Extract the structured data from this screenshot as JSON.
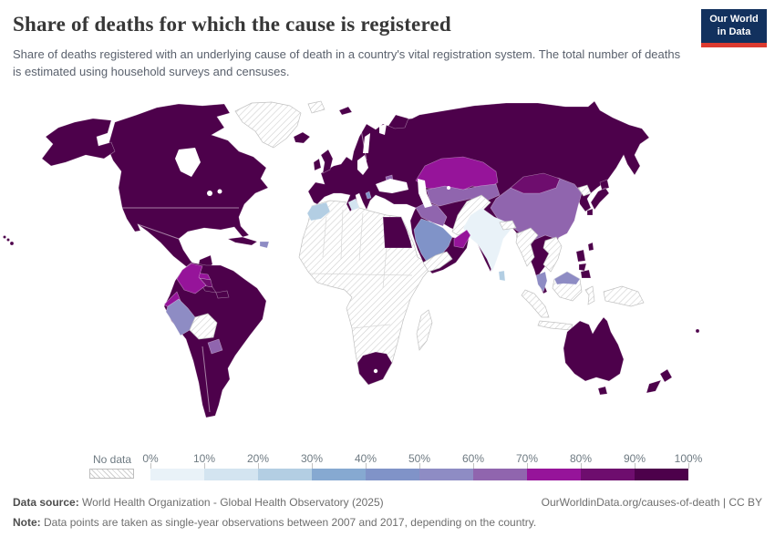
{
  "header": {
    "title": "Share of deaths for which the cause is registered",
    "subtitle": "Share of deaths registered with an underlying cause of death in a country's vital registration system. The total number of deaths is estimated using household surveys and censuses.",
    "logo_line1": "Our World",
    "logo_line2": "in Data",
    "logo_bg": "#12315e",
    "logo_accent": "#dc3a2f"
  },
  "footer": {
    "source_label": "Data source:",
    "source_text": " World Health Organization - Global Health Observatory (2025)",
    "link_text": "OurWorldinData.org/causes-of-death | CC BY",
    "note_label": "Note:",
    "note_text": " Data points are taken as single-year observations between 2007 and 2017, depending on the country."
  },
  "chart_data": {
    "type": "choropleth",
    "title": "Share of deaths for which the cause is registered",
    "unit": "%",
    "legend": {
      "no_data_label": "No data",
      "tick_labels": [
        "0%",
        "10%",
        "20%",
        "30%",
        "40%",
        "50%",
        "60%",
        "70%",
        "80%",
        "90%",
        "100%"
      ],
      "bins": [
        {
          "range": "0-10",
          "color": "#e9f2f8"
        },
        {
          "range": "10-20",
          "color": "#d3e4f0"
        },
        {
          "range": "20-30",
          "color": "#b3cee3"
        },
        {
          "range": "30-40",
          "color": "#86a9d1"
        },
        {
          "range": "40-50",
          "color": "#8093c8"
        },
        {
          "range": "50-60",
          "color": "#8e8cc4"
        },
        {
          "range": "60-70",
          "color": "#9065ae"
        },
        {
          "range": "70-80",
          "color": "#96149a"
        },
        {
          "range": "80-90",
          "color": "#6e0d6e"
        },
        {
          "range": "90-100",
          "color": "#4d014b"
        }
      ]
    },
    "region_bins": {
      "north-america-main": "90-100",
      "alaska": "90-100",
      "hawaii": "90-100",
      "greenland": "no-data",
      "cuba": "90-100",
      "hispaniola": "50-60",
      "guatemala": "10-20",
      "honduras": "70-80",
      "nicaragua": "80-90",
      "costa-rica": "90-100",
      "panama": "90-100",
      "south-america-main": "90-100",
      "colombia": "70-80",
      "ecuador": "70-80",
      "peru": "50-60",
      "bolivia": "no-data",
      "paraguay": "60-70",
      "africa-main": "no-data",
      "morocco": "20-30",
      "tunisia": "10-20",
      "egypt": "90-100",
      "south-africa": "90-100",
      "madagascar": "no-data",
      "eurasia-main": "90-100",
      "uk": "90-100",
      "ireland": "90-100",
      "iceland": "90-100",
      "svalbard-west": "no-data",
      "svalbard-east": "90-100",
      "novaya-zemlya": "90-100",
      "kazakhstan": "70-80",
      "central-asia": "60-70",
      "china": "60-70",
      "mongolia": "80-90",
      "afghanistan-pakistan": "no-data",
      "india": "0-10",
      "sri-lanka": "20-30",
      "nepal": "no-data",
      "bangladesh": "no-data",
      "myanmar": "no-data",
      "indochina": "no-data",
      "malaysia-peninsula": "50-60",
      "iraq-syria": "60-70",
      "saudi-arabia": "40-50",
      "yemen": "no-data",
      "oman": "70-80",
      "moldova": "60-70",
      "albania": "40-50",
      "north-korea": "no-data",
      "borneo-indonesia": "no-data",
      "malaysia-borneo": "50-60",
      "sumatra": "no-data",
      "java": "no-data",
      "sulawesi": "no-data",
      "new-guinea": "no-data",
      "philippines": "90-100",
      "taiwan": "90-100",
      "japan": "90-100",
      "australia": "90-100",
      "tasmania": "90-100",
      "new-zealand-north": "90-100",
      "new-zealand-south": "90-100",
      "fiji": "90-100"
    }
  }
}
